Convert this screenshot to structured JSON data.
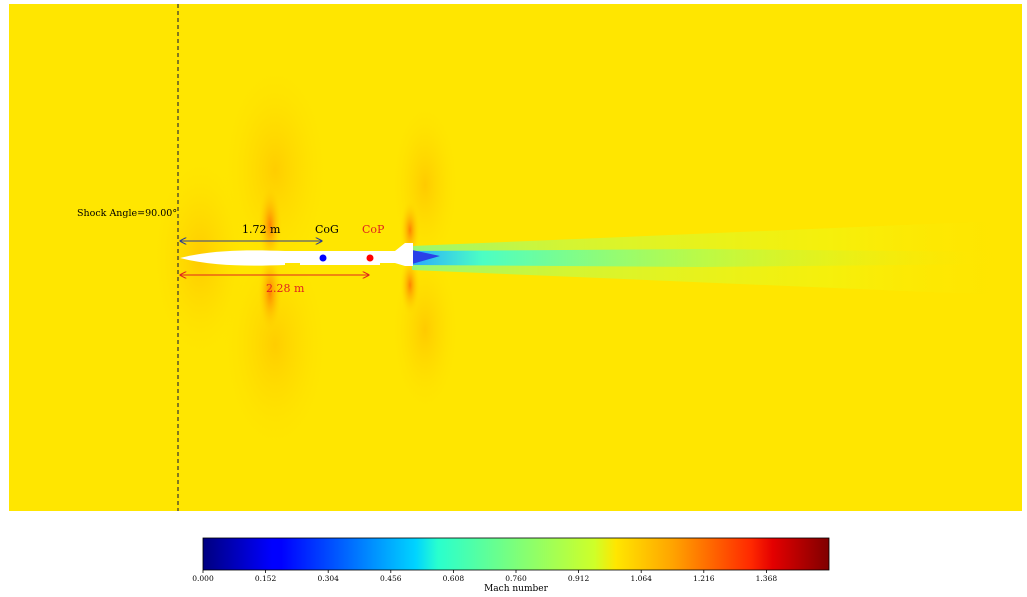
{
  "annotations": {
    "shock_angle": "Shock Angle=90.00°",
    "cog_distance": "1.72 m",
    "cop_distance": "2.28 m",
    "cog_label": "CoG",
    "cop_label": "CoP"
  },
  "colorbar": {
    "label": "Mach number",
    "min": 0.0,
    "max": 1.52,
    "ticks": [
      "0.000",
      "0.152",
      "0.304",
      "0.456",
      "0.608",
      "0.760",
      "0.912",
      "1.064",
      "1.216",
      "1.368"
    ]
  },
  "colors": {
    "freestream": "#ffe600",
    "cog_marker": "#0000ff",
    "cop_marker": "#ff0000",
    "cog_arrow": "#2c3e8f",
    "cop_arrow": "#e0251e",
    "shock_line": "#333333"
  }
}
